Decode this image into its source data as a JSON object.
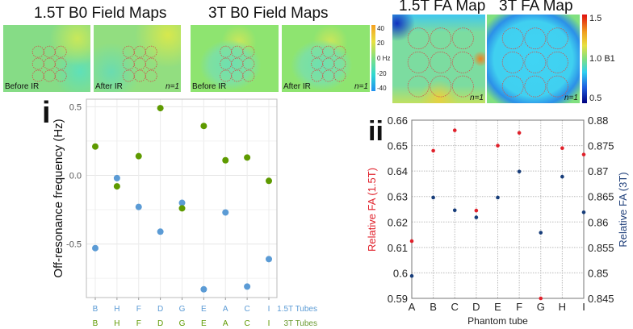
{
  "panels": {
    "b0_15_title": "1.5T B0 Field Maps",
    "b0_3_title": "3T B0 Field Maps",
    "fa_15_title": "1.5T FA Map",
    "fa_3_title": "3T FA Map",
    "before_ir": "Before IR",
    "after_ir": "After IR",
    "n_label": "n=1",
    "b0_colorbar": [
      "40",
      "20",
      "0 Hz",
      "-20",
      "-40"
    ],
    "fa_colorbar": [
      "1.5",
      "1.0 B1",
      "0.5"
    ],
    "colors": {
      "b0_base": "#8fe07a",
      "fa15_base": "#7fdc9a",
      "fa3_base": "#45d3f0",
      "roi_circle": "#d0504a"
    }
  },
  "chart_data": [
    {
      "type": "scatter",
      "panel_label": "i",
      "title": "",
      "xlabel": "",
      "ylabel": "Off-resonance frequency (Hz)",
      "ylim": [
        -0.89,
        0.555
      ],
      "yticks": [
        0.5,
        0.0,
        -0.5
      ],
      "ytick_labels": [
        "0.5",
        "0.0",
        "-0.5"
      ],
      "grid": true,
      "categories_15T": [
        "B",
        "H",
        "F",
        "D",
        "G",
        "E",
        "A",
        "C",
        "I"
      ],
      "categories_3T": [
        "B",
        "H",
        "F",
        "D",
        "G",
        "E",
        "A",
        "C",
        "I"
      ],
      "row_labels": [
        "1.5T Tubes",
        "3T Tubes"
      ],
      "series": [
        {
          "name": "1.5T Tubes",
          "color": "#5b9bd5",
          "values": [
            -0.53,
            -0.02,
            -0.23,
            -0.41,
            -0.2,
            -0.83,
            -0.27,
            -0.81,
            -0.61
          ]
        },
        {
          "name": "3T Tubes",
          "color": "#5e9a00",
          "values": [
            0.21,
            -0.08,
            0.14,
            0.49,
            -0.24,
            0.36,
            0.11,
            0.13,
            -0.04
          ]
        }
      ]
    },
    {
      "type": "scatter",
      "panel_label": "ii",
      "xlabel": "Phantom tube",
      "categories": [
        "A",
        "B",
        "C",
        "D",
        "E",
        "F",
        "G",
        "H",
        "I"
      ],
      "grid": true,
      "left_axis": {
        "label": "Relative FA (1.5T)",
        "range": [
          0.59,
          0.66
        ],
        "ticks": [
          "0.66",
          "0.65",
          "0.64",
          "0.63",
          "0.62",
          "0.61",
          "0.6",
          "0.59"
        ],
        "color": "#e0202a"
      },
      "right_axis": {
        "label": "Relative FA (3T)",
        "range": [
          0.845,
          0.88
        ],
        "ticks": [
          "0.88",
          "0.875",
          "0.87",
          "0.865",
          "0.86",
          "0.855",
          "0.85",
          "0.845"
        ],
        "color": "#1f3f7a"
      },
      "series": [
        {
          "name": "1.5T",
          "axis": "left",
          "color": "#e0202a",
          "values": [
            0.6125,
            0.648,
            0.656,
            0.6245,
            0.65,
            0.655,
            0.59,
            0.649,
            0.6465
          ]
        },
        {
          "name": "3T",
          "axis": "right",
          "color": "#173d7a",
          "values": [
            0.8494,
            0.8648,
            0.8623,
            0.8609,
            0.8648,
            0.8699,
            0.8579,
            0.8689,
            0.8619
          ]
        }
      ]
    }
  ]
}
